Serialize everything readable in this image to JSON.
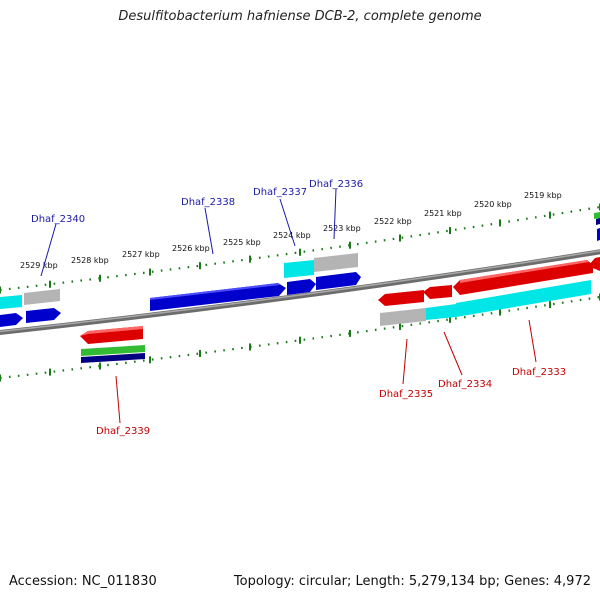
{
  "title": "Desulfitobacterium hafniense DCB-2, complete genome",
  "footer": {
    "accession": "Accession: NC_011830",
    "summary": "Topology: circular; Length: 5,279,134 bp; Genes: 4,972"
  },
  "colors": {
    "forward_cds": "#0000cc",
    "reverse_cds": "#dd0000",
    "forward_label": "#1a1aa6",
    "reverse_label": "#c40000",
    "ruler_ticks": "#1a7a1a",
    "backbone": "#777777",
    "rna_cyan": "#00e5e5",
    "pseudo_gray": "#b4b4b4",
    "green_feature": "#33bb33",
    "navy_feature": "#000080"
  },
  "ruler_labels": [
    "2529 kbp",
    "2528 kbp",
    "2527 kbp",
    "2526 kbp",
    "2525 kbp",
    "2524 kbp",
    "2523 kbp",
    "2522 kbp",
    "2521 kbp",
    "2520 kbp",
    "2519 kbp"
  ],
  "gene_labels": {
    "forward": [
      "Dhaf_2340",
      "Dhaf_2338",
      "Dhaf_2337",
      "Dhaf_2336"
    ],
    "reverse": [
      "Dhaf_2339",
      "Dhaf_2335",
      "Dhaf_2334",
      "Dhaf_2333"
    ]
  }
}
